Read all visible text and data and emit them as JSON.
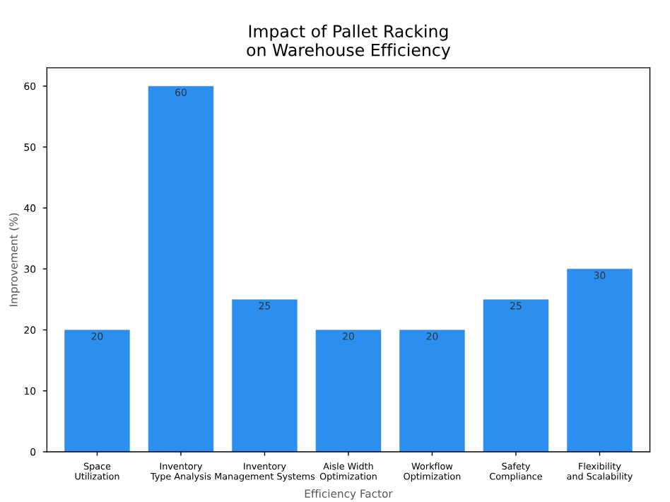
{
  "chart_data": {
    "type": "bar",
    "title": "Impact of Pallet Racking\non Warehouse Efficiency",
    "xlabel": "Efficiency Factor",
    "ylabel": "Improvement (%)",
    "categories": [
      "Space\nUtilization",
      "Inventory\nType Analysis",
      "Inventory\nManagement Systems",
      "Aisle Width\nOptimization",
      "Workflow\nOptimization",
      "Safety\nCompliance",
      "Flexibility\nand Scalability"
    ],
    "values": [
      20,
      60,
      25,
      20,
      20,
      25,
      30
    ],
    "color": "#2b8ff0",
    "data_labels": true,
    "ylim": [
      0,
      63
    ],
    "yticks": [
      0,
      10,
      20,
      30,
      40,
      50,
      60
    ],
    "grid": false
  }
}
